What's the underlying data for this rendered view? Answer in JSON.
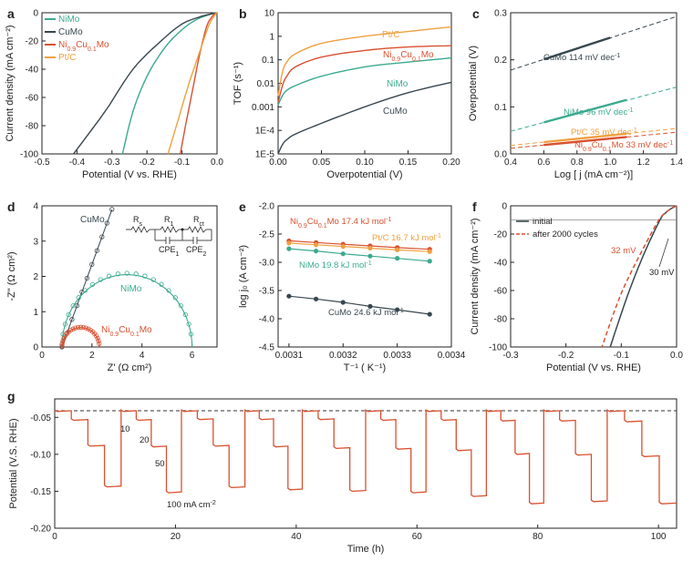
{
  "colors": {
    "nimo": "#3aaa8f",
    "cumo": "#37474f",
    "nicumo": "#d9502f",
    "ptc": "#f0a040",
    "grey": "#888888",
    "dash": "#333333"
  },
  "chart_data": [
    {
      "panel": "a",
      "type": "line",
      "xlabel": "Potential (V vs. RHE)",
      "ylabel": "Current density (mA cm⁻²)",
      "xlim": [
        -0.5,
        0.0
      ],
      "ylim": [
        -100,
        0
      ],
      "xticks": [
        "-0.5",
        "-0.4",
        "-0.3",
        "-0.2",
        "-0.1",
        "0.0"
      ],
      "yticks": [
        "0",
        "-20",
        "-40",
        "-60",
        "-80",
        "-100"
      ],
      "legend": [
        "NiMo",
        "CuMo",
        "Ni0.9Cu0.1Mo",
        "Pt/C"
      ],
      "series": [
        {
          "name": "NiMo",
          "x": [
            -0.005,
            -0.03,
            -0.06,
            -0.1,
            -0.15,
            -0.2,
            -0.24,
            -0.27
          ],
          "y": [
            0,
            -2,
            -5,
            -12,
            -25,
            -45,
            -70,
            -100
          ]
        },
        {
          "name": "CuMo",
          "x": [
            0.0,
            -0.02,
            -0.05,
            -0.1,
            -0.16,
            -0.24,
            -0.32,
            -0.41
          ],
          "y": [
            0,
            -1,
            -3,
            -8,
            -20,
            -40,
            -70,
            -100
          ]
        },
        {
          "name": "Ni0.9Cu0.1Mo",
          "x": [
            -0.003,
            -0.015,
            -0.03,
            -0.05,
            -0.07,
            -0.09,
            -0.105
          ],
          "y": [
            0,
            -3,
            -10,
            -30,
            -55,
            -80,
            -100
          ]
        },
        {
          "name": "Pt/C",
          "x": [
            0.0,
            -0.01,
            -0.025,
            -0.05,
            -0.08,
            -0.11,
            -0.14
          ],
          "y": [
            0,
            -3,
            -10,
            -28,
            -50,
            -75,
            -100
          ]
        }
      ]
    },
    {
      "panel": "b",
      "type": "line",
      "xlabel": "Overpotential (V)",
      "ylabel": "TOF (s⁻¹)",
      "xlim": [
        0,
        0.2
      ],
      "ylim": [
        1e-05,
        10
      ],
      "yscale": "log",
      "xticks": [
        "0.00",
        "0.05",
        "0.10",
        "0.15",
        "0.20"
      ],
      "yticks": [
        "1E-5",
        "1E-4",
        "0.001",
        "0.01",
        "0.1",
        "1",
        "10"
      ],
      "series": [
        {
          "name": "Pt/C",
          "x": [
            0,
            0.005,
            0.01,
            0.02,
            0.05,
            0.1,
            0.15,
            0.2
          ],
          "y": [
            0.003,
            0.03,
            0.08,
            0.18,
            0.5,
            1.0,
            1.6,
            2.5
          ]
        },
        {
          "name": "Ni0.9Cu0.1Mo",
          "x": [
            0,
            0.005,
            0.01,
            0.02,
            0.05,
            0.1,
            0.15,
            0.2
          ],
          "y": [
            0.0015,
            0.008,
            0.02,
            0.05,
            0.13,
            0.25,
            0.35,
            0.4
          ]
        },
        {
          "name": "NiMo",
          "x": [
            0,
            0.005,
            0.01,
            0.02,
            0.05,
            0.1,
            0.15,
            0.2
          ],
          "y": [
            0.0012,
            0.003,
            0.005,
            0.008,
            0.02,
            0.05,
            0.08,
            0.12
          ]
        },
        {
          "name": "CuMo",
          "x": [
            0,
            0.005,
            0.01,
            0.02,
            0.05,
            0.1,
            0.15,
            0.2
          ],
          "y": [
            1e-05,
            2.5e-05,
            4e-05,
            7e-05,
            0.0002,
            0.001,
            0.004,
            0.011
          ]
        }
      ]
    },
    {
      "panel": "c",
      "type": "line",
      "xlabel": "Log [ j (mA cm⁻²)]",
      "ylabel": "Overpotential (V)",
      "xlim": [
        0.4,
        1.4
      ],
      "ylim": [
        0,
        0.3
      ],
      "xticks": [
        "0.4",
        "0.6",
        "0.8",
        "1.0",
        "1.2",
        "1.4"
      ],
      "yticks": [
        "0.0",
        "0.1",
        "0.2",
        "0.3"
      ],
      "series": [
        {
          "name": "CuMo 114 mV dec⁻¹",
          "x": [
            0.4,
            1.4
          ],
          "y": [
            0.178,
            0.292
          ],
          "fit_x": [
            0.6,
            1.0
          ],
          "fit_y": [
            0.201,
            0.247
          ]
        },
        {
          "name": "NiMo 96 mV dec⁻¹",
          "x": [
            0.4,
            1.4
          ],
          "y": [
            0.048,
            0.142
          ],
          "fit_x": [
            0.6,
            1.1
          ],
          "fit_y": [
            0.067,
            0.115
          ]
        },
        {
          "name": "Pt/C 35 mV dec⁻¹",
          "x": [
            0.4,
            1.4
          ],
          "y": [
            0.018,
            0.054
          ],
          "fit_x": [
            0.6,
            1.1
          ],
          "fit_y": [
            0.025,
            0.043
          ]
        },
        {
          "name": "Ni0.9Cu0.1Mo 33 mV dec⁻¹",
          "x": [
            0.4,
            1.4
          ],
          "y": [
            0.012,
            0.046
          ],
          "fit_x": [
            0.6,
            1.1
          ],
          "fit_y": [
            0.019,
            0.036
          ]
        }
      ]
    },
    {
      "panel": "d",
      "type": "scatter",
      "xlabel": "Z' (Ω cm²)",
      "ylabel": "-Z\" (Ω cm²)",
      "xlim": [
        0,
        7
      ],
      "ylim": [
        0,
        4
      ],
      "xticks": [
        "0",
        "2",
        "4",
        "6"
      ],
      "yticks": [
        "0",
        "1",
        "2",
        "3",
        "4"
      ],
      "circuit": {
        "rs": "R",
        "rs_sub": "s",
        "r1": "R",
        "r1_sub": "1",
        "rct": "R",
        "rct_sub": "ct",
        "cpe1": "CPE",
        "cpe1_sub": "1",
        "cpe2": "CPE",
        "cpe2_sub": "2"
      },
      "series": [
        {
          "name": "CuMo",
          "type": "line-points",
          "start": 0.8,
          "slope": 1.95,
          "x_end": 2.8
        },
        {
          "name": "NiMo",
          "type": "arc",
          "x0": 0.8,
          "x1": 6.0,
          "peak": 2.05
        },
        {
          "name": "Ni0.9Cu0.1Mo",
          "type": "arc",
          "x0": 0.8,
          "x1": 2.3,
          "peak": 0.55
        }
      ]
    },
    {
      "panel": "e",
      "type": "line",
      "xlabel": "T⁻¹ ( K⁻¹)",
      "ylabel": "log j₀ (A cm⁻²)",
      "xlim": [
        0.00308,
        0.0034
      ],
      "ylim": [
        -4.5,
        -2.0
      ],
      "xticks": [
        "0.0031",
        "0.0032",
        "0.0033",
        "0.0034"
      ],
      "yticks": [
        "-2.0",
        "-2.5",
        "-3.0",
        "-3.5",
        "-4.0",
        "-4.5"
      ],
      "x": [
        0.0031,
        0.00315,
        0.0032,
        0.00325,
        0.0033,
        0.00336
      ],
      "series": [
        {
          "name": "Ni0.9Cu0.1Mo 17.4 kJ mol⁻¹",
          "y": [
            -2.62,
            -2.65,
            -2.68,
            -2.71,
            -2.74,
            -2.77
          ]
        },
        {
          "name": "Pt/C 16.7 kJ mol⁻¹",
          "y": [
            -2.66,
            -2.69,
            -2.72,
            -2.75,
            -2.78,
            -2.81
          ]
        },
        {
          "name": "NiMo 19.8 kJ mol⁻¹",
          "y": [
            -2.76,
            -2.8,
            -2.85,
            -2.89,
            -2.93,
            -2.98
          ]
        },
        {
          "name": "CuMo 24.6 kJ mol⁻¹",
          "y": [
            -3.6,
            -3.65,
            -3.71,
            -3.78,
            -3.84,
            -3.92
          ]
        }
      ]
    },
    {
      "panel": "f",
      "type": "line",
      "xlabel": "Potential (V vs. RHE)",
      "ylabel": "Current density (mA cm⁻²)",
      "xlim": [
        -0.3,
        0.0
      ],
      "ylim": [
        -100,
        0
      ],
      "xticks": [
        "-0.3",
        "-0.2",
        "-0.1",
        "0.0"
      ],
      "yticks": [
        "0",
        "-20",
        "-40",
        "-60",
        "-80",
        "-100"
      ],
      "legend": [
        "initial",
        "after 2000 cycles"
      ],
      "annotations": [
        "32 mV",
        "30 mV"
      ],
      "ref_y": -10,
      "series": [
        {
          "name": "initial",
          "x": [
            0.0,
            -0.01,
            -0.02,
            -0.03,
            -0.06,
            -0.09,
            -0.12
          ],
          "y": [
            0,
            -2,
            -5,
            -10,
            -35,
            -65,
            -100
          ]
        },
        {
          "name": "after 2000 cycles",
          "x": [
            0.0,
            -0.01,
            -0.02,
            -0.032,
            -0.06,
            -0.1,
            -0.135
          ],
          "y": [
            0,
            -2,
            -5,
            -10,
            -30,
            -62,
            -100
          ]
        }
      ]
    },
    {
      "panel": "g",
      "type": "line",
      "xlabel": "Time (h)",
      "ylabel": "Potential (V.S. RHE)",
      "xlim": [
        0,
        103
      ],
      "ylim": [
        -0.2,
        -0.025
      ],
      "xticks": [
        "0",
        "20",
        "40",
        "60",
        "80",
        "100"
      ],
      "yticks": [
        "-0.05",
        "-0.10",
        "-0.15",
        "-0.20"
      ],
      "ref_y": -0.041,
      "step_labels": [
        "10",
        "20",
        "50",
        "100 mA cm⁻²"
      ],
      "cycles": [
        {
          "t0": 0,
          "t1": 11,
          "v": [
            -0.04,
            -0.052,
            -0.087,
            -0.142
          ]
        },
        {
          "t0": 11,
          "t1": 21,
          "v": [
            -0.04,
            -0.052,
            -0.088,
            -0.15
          ]
        },
        {
          "t0": 21,
          "t1": 31.5,
          "v": [
            -0.04,
            -0.051,
            -0.087,
            -0.143
          ]
        },
        {
          "t0": 31.5,
          "t1": 41,
          "v": [
            -0.04,
            -0.051,
            -0.088,
            -0.146
          ]
        },
        {
          "t0": 41,
          "t1": 51.5,
          "v": [
            -0.04,
            -0.051,
            -0.09,
            -0.148
          ]
        },
        {
          "t0": 51.5,
          "t1": 61.5,
          "v": [
            -0.04,
            -0.052,
            -0.091,
            -0.15
          ]
        },
        {
          "t0": 61.5,
          "t1": 71.5,
          "v": [
            -0.04,
            -0.052,
            -0.093,
            -0.155
          ]
        },
        {
          "t0": 71.5,
          "t1": 81,
          "v": [
            -0.04,
            -0.053,
            -0.098,
            -0.165
          ]
        },
        {
          "t0": 81,
          "t1": 91.5,
          "v": [
            -0.04,
            -0.053,
            -0.099,
            -0.162
          ]
        },
        {
          "t0": 91.5,
          "t1": 103,
          "v": [
            -0.04,
            -0.054,
            -0.101,
            -0.165
          ]
        }
      ]
    }
  ]
}
